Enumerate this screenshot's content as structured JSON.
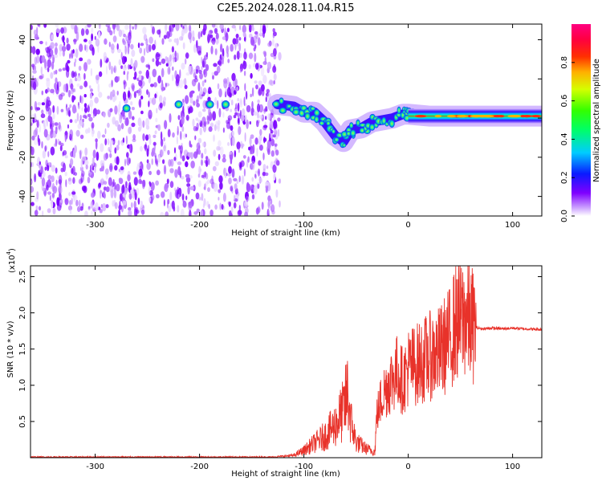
{
  "title": "C2E5.2024.028.11.04.R15",
  "colors": {
    "snr_line": "#e8322a",
    "axis": "#000000",
    "background": "#ffffff"
  },
  "chart_data": [
    {
      "type": "heatmap",
      "name": "spectrogram",
      "xlabel": "Height of straight line (km)",
      "ylabel": "Frequency (Hz)",
      "xlim": [
        -362,
        128
      ],
      "ylim": [
        -50,
        48
      ],
      "xticks": [
        -300,
        -200,
        -100,
        0,
        100
      ],
      "xtick_labels": [
        "-300",
        "-200",
        "-100",
        "0",
        "100"
      ],
      "yticks": [
        -40,
        -20,
        0,
        20,
        40
      ],
      "ytick_labels": [
        "-40",
        "-20",
        "0",
        "20",
        "40"
      ],
      "noise_region": [
        -362,
        -123
      ],
      "signal_track": {
        "x": [
          -125,
          -110,
          -100,
          -90,
          -80,
          -70,
          -62,
          -55,
          -45,
          -35,
          -25,
          -15,
          -5,
          0,
          20,
          40,
          60,
          80,
          100,
          128
        ],
        "y": [
          7,
          6,
          3,
          3,
          -2,
          -9,
          -12,
          -6,
          -5,
          -2,
          -1,
          0,
          2,
          2,
          1,
          1,
          1,
          1,
          1,
          1
        ]
      },
      "colorbar": {
        "label": "Normalized spectral amplitude",
        "range": [
          0.0,
          1.0
        ],
        "ticks": [
          0.0,
          0.2,
          0.4,
          0.6,
          0.8
        ],
        "tick_labels": [
          "0.0",
          "0.2",
          "0.4",
          "0.6",
          "0.8"
        ]
      }
    },
    {
      "type": "line",
      "name": "snr",
      "xlabel": "Height of straight line (km)",
      "ylabel": "SNR (10 * v/v)",
      "exponent_label": "(x10",
      "exponent_power": "4",
      "xlim": [
        -362,
        128
      ],
      "ylim": [
        0,
        2.65
      ],
      "xticks": [
        -300,
        -200,
        -100,
        0,
        100
      ],
      "xtick_labels": [
        "-300",
        "-200",
        "-100",
        "0",
        "100"
      ],
      "yticks": [
        0.5,
        1.0,
        1.5,
        2.0,
        2.5
      ],
      "ytick_labels": [
        "0.5",
        "1.0",
        "1.5",
        "2.0",
        "2.5"
      ],
      "series": [
        {
          "name": "SNR",
          "x": [
            -362,
            -300,
            -200,
            -130,
            -110,
            -100,
            -90,
            -80,
            -70,
            -62,
            -58,
            -55,
            -50,
            -40,
            -32,
            -30,
            -25,
            -20,
            -15,
            -10,
            -5,
            0,
            10,
            20,
            30,
            40,
            45,
            50,
            55,
            60,
            65,
            70,
            80,
            90,
            100,
            110,
            128
          ],
          "y": [
            0.01,
            0.01,
            0.01,
            0.01,
            0.03,
            0.1,
            0.2,
            0.3,
            0.45,
            0.65,
            0.9,
            0.5,
            0.22,
            0.12,
            0.08,
            0.6,
            0.85,
            1.0,
            1.1,
            1.2,
            1.05,
            1.25,
            1.3,
            1.4,
            1.45,
            1.65,
            1.85,
            1.9,
            1.95,
            1.85,
            1.8,
            1.78,
            1.79,
            1.78,
            1.79,
            1.78,
            1.77
          ]
        }
      ]
    }
  ]
}
